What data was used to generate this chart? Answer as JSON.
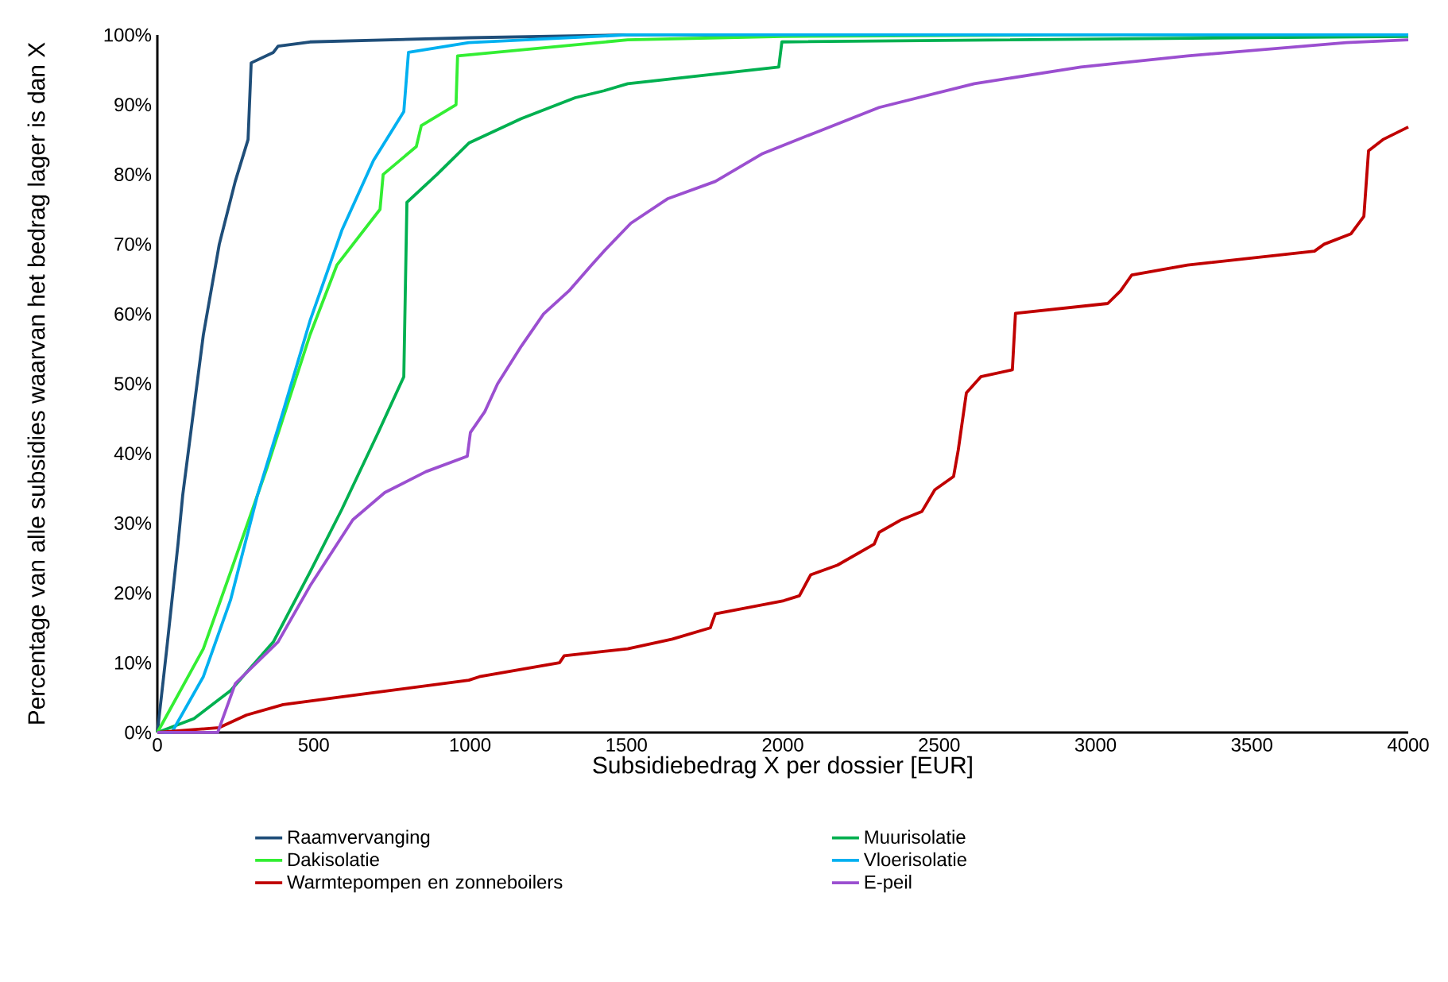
{
  "chart_data": {
    "type": "line",
    "xlabel": "Subsidiebedrag X per dossier [EUR]",
    "ylabel": "Percentage van alle subsidies waarvan het bedrag lager is dan X",
    "xlim": [
      0,
      4000
    ],
    "ylim": [
      0,
      100
    ],
    "xticks": [
      0,
      500,
      1000,
      1500,
      2000,
      2500,
      3000,
      3500,
      4000
    ],
    "yticks": [
      {
        "value": 0,
        "label": "0%"
      },
      {
        "value": 10,
        "label": "10%"
      },
      {
        "value": 20,
        "label": "20%"
      },
      {
        "value": 30,
        "label": "30%"
      },
      {
        "value": 40,
        "label": "40%"
      },
      {
        "value": 50,
        "label": "50%"
      },
      {
        "value": 60,
        "label": "60%"
      },
      {
        "value": 70,
        "label": "70%"
      },
      {
        "value": 80,
        "label": "80%"
      },
      {
        "value": 90,
        "label": "90%"
      },
      {
        "value": 100,
        "label": "100%"
      }
    ],
    "legend": "bottom",
    "grid": false,
    "series": [
      {
        "name": "Raamvervanging",
        "color": "#1f4e79",
        "x": [
          0,
          30,
          66,
          81,
          147,
          198,
          249,
          290,
          300,
          371,
          386,
          488,
          1000,
          1500,
          4000
        ],
        "values": [
          0,
          12,
          27,
          34,
          57,
          70,
          79,
          85,
          96,
          97.5,
          98.4,
          99,
          99.6,
          100,
          100
        ]
      },
      {
        "name": "Muurisolatie",
        "color": "#00b050",
        "x": [
          0,
          117,
          234,
          371,
          488,
          590,
          706,
          788,
          798,
          894,
          996,
          1164,
          1336,
          1428,
          1504,
          1987,
          1997,
          4000
        ],
        "values": [
          0,
          2,
          6,
          13,
          23,
          32,
          43,
          51,
          76,
          80,
          84.5,
          88,
          91,
          92,
          93,
          95.4,
          99,
          99.8
        ]
      },
      {
        "name": "Dakisolatie",
        "color": "#33ee33",
        "x": [
          0,
          147,
          234,
          351,
          488,
          574,
          712,
          722,
          828,
          844,
          955,
          960,
          1504,
          2000,
          3000,
          4000
        ],
        "values": [
          0,
          12,
          23,
          38,
          57,
          67,
          75,
          80,
          84,
          87,
          90,
          97,
          99.3,
          99.8,
          100,
          100
        ]
      },
      {
        "name": "Vloerisolatie",
        "color": "#00b0f0",
        "x": [
          0,
          46,
          147,
          234,
          320,
          402,
          488,
          590,
          691,
          788,
          803,
          996,
          1500,
          4000
        ],
        "values": [
          0,
          0,
          8,
          19,
          34,
          46,
          59,
          72,
          82,
          89,
          97.5,
          98.9,
          100,
          100
        ]
      },
      {
        "name": "Warmtepompen en zonneboilers",
        "color": "#c00000",
        "x": [
          0,
          198,
          285,
          402,
          656,
          996,
          1030,
          1286,
          1301,
          1504,
          1647,
          1768,
          1784,
          2003,
          2053,
          2089,
          2175,
          2292,
          2308,
          2379,
          2445,
          2486,
          2546,
          2561,
          2587,
          2633,
          2734,
          2744,
          3039,
          3080,
          3116,
          3294,
          3700,
          3731,
          3817,
          3858,
          3873,
          3919,
          4000
        ],
        "values": [
          0,
          0.7,
          2.5,
          4,
          5.5,
          7.5,
          8,
          10,
          11,
          12,
          13.4,
          15,
          17,
          18.9,
          19.6,
          22.6,
          24,
          27,
          28.7,
          30.5,
          31.7,
          34.8,
          36.7,
          40.5,
          48.7,
          51,
          52,
          60.1,
          61.5,
          63.3,
          65.6,
          67,
          69,
          70,
          71.5,
          74,
          83.4,
          85,
          86.8
        ]
      },
      {
        "name": "E-peil",
        "color": "#9b4fd0",
        "x": [
          0,
          193,
          249,
          386,
          488,
          625,
          727,
          859,
          991,
          1001,
          1047,
          1088,
          1164,
          1235,
          1316,
          1388,
          1428,
          1514,
          1631,
          1784,
          1936,
          2104,
          2308,
          2612,
          2953,
          3294,
          3802,
          4000
        ],
        "values": [
          0,
          0,
          7,
          13,
          21,
          30.5,
          34.4,
          37.4,
          39.6,
          43,
          46,
          50,
          55.4,
          60,
          63.3,
          67,
          69,
          73,
          76.5,
          79,
          83,
          86,
          89.6,
          93,
          95.4,
          97,
          98.9,
          99.3
        ]
      }
    ]
  }
}
